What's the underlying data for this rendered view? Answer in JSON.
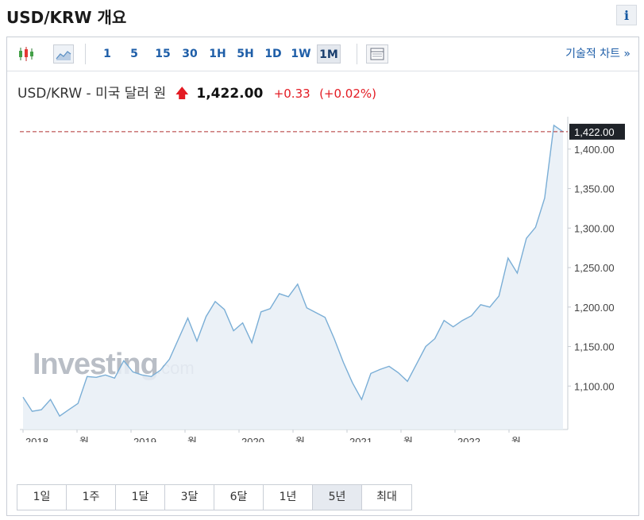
{
  "page": {
    "title": "USD/KRW 개요",
    "info_label": "i"
  },
  "toolbar": {
    "timeframes": [
      "1",
      "5",
      "15",
      "30",
      "1H",
      "5H",
      "1D",
      "1W",
      "1M"
    ],
    "active_timeframe": "1M",
    "tech_chart_link": "기술적 차트 »"
  },
  "quote": {
    "pair": "USD/KRW - 미국 달러 원",
    "arrow": "🡅",
    "price": "1,422.00",
    "change": "+0.33",
    "change_pct": "(+0.02%)",
    "color_up": "#e31b23"
  },
  "watermark": {
    "brand": "Investing",
    "suffix": ".com"
  },
  "ranges": [
    "1일",
    "1주",
    "1달",
    "3달",
    "6달",
    "1년",
    "5년",
    "최대"
  ],
  "active_range": "5년",
  "chart_data": {
    "type": "area",
    "series": [
      {
        "values": [
          1086,
          1068,
          1070,
          1083,
          1062,
          1070,
          1078,
          1112,
          1111,
          1114,
          1110,
          1132,
          1118,
          1114,
          1112,
          1120,
          1134,
          1160,
          1186,
          1157,
          1188,
          1207,
          1197,
          1170,
          1180,
          1155,
          1194,
          1198,
          1217,
          1213,
          1229,
          1199,
          1193,
          1187,
          1160,
          1130,
          1104,
          1083,
          1116,
          1121,
          1125,
          1117,
          1106,
          1128,
          1150,
          1160,
          1183,
          1175,
          1183,
          1189,
          1203,
          1200,
          1214,
          1262,
          1243,
          1287,
          1301,
          1338,
          1430,
          1422
        ]
      }
    ],
    "x_tick_labels": [
      "2018",
      "월",
      "2019",
      "월",
      "2020",
      "월",
      "2021",
      "월",
      "2022",
      "월"
    ],
    "y_tick_labels": [
      "1,100.00",
      "1,150.00",
      "1,200.00",
      "1,250.00",
      "1,300.00",
      "1,350.00",
      "1,400.00"
    ],
    "y_ticks": [
      1100,
      1150,
      1200,
      1250,
      1300,
      1350,
      1400
    ],
    "ylim": [
      1045,
      1441
    ],
    "last_value": 1422,
    "last_label": "1,422.00",
    "line_color": "#7aaed6",
    "fill_color": "#e7eef6",
    "reference_line_color": "#b03030",
    "grid": true
  }
}
